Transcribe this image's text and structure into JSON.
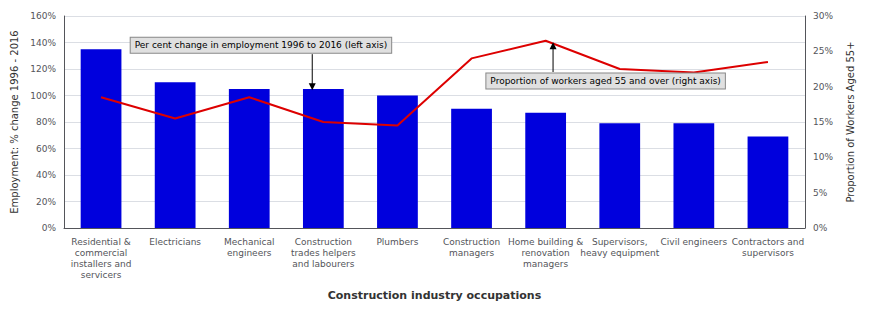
{
  "chart_data": {
    "type": "bar",
    "categories": [
      "Residential &\ncommercial\ninstallers and\nservicers",
      "Electricians",
      "Mechanical\nengineers",
      "Construction\ntrades helpers\nand labourers",
      "Plumbers",
      "Construction\nmanagers",
      "Home building &\nrenovation\nmanagers",
      "Supervisors,\nheavy equipment",
      "Civil engineers",
      "Contractors and\nsupervisors"
    ],
    "series": [
      {
        "type": "bar",
        "color": "#0000dd",
        "values": [
          135,
          110,
          105,
          105,
          100,
          90,
          87,
          79,
          79,
          69
        ]
      },
      {
        "type": "line",
        "color": "#dd0000",
        "axis": "y2",
        "values": [
          18.5,
          15.5,
          18.5,
          15.0,
          14.5,
          24.0,
          26.5,
          22.5,
          22.0,
          23.5
        ]
      }
    ],
    "xlabel": "Construction industry occupations",
    "ylabel": "Employment: % change 1996 - 2016",
    "y2label": "Proportion of Workers Aged 55+",
    "ylim": [
      0,
      160
    ],
    "yticks": [
      {
        "value": 0,
        "label": "0%"
      },
      {
        "value": 20,
        "label": "20%"
      },
      {
        "value": 40,
        "label": "40%"
      },
      {
        "value": 60,
        "label": "60%"
      },
      {
        "value": 80,
        "label": "80%"
      },
      {
        "value": 100,
        "label": "100%"
      },
      {
        "value": 120,
        "label": "120%"
      },
      {
        "value": 140,
        "label": "140%"
      },
      {
        "value": 160,
        "label": "160%"
      }
    ],
    "y2lim": [
      0,
      30
    ],
    "y2ticks": [
      {
        "value": 0,
        "label": "0%"
      },
      {
        "value": 5,
        "label": "5%"
      },
      {
        "value": 10,
        "label": "10%"
      },
      {
        "value": 15,
        "label": "15%"
      },
      {
        "value": 20,
        "label": "20%"
      },
      {
        "value": 25,
        "label": "25%"
      },
      {
        "value": 30,
        "label": "30%"
      }
    ],
    "grid": true,
    "annotations": [
      "Per cent change in employment 1996 to 2016 (left axis)",
      "Proportion of workers aged 55 and over (right axis)"
    ]
  }
}
